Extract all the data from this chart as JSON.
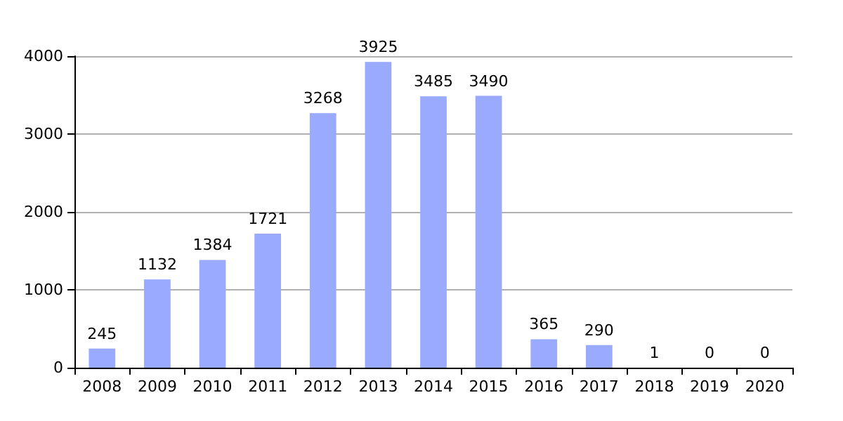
{
  "chart_data": {
    "type": "bar",
    "categories": [
      "2008",
      "2009",
      "2010",
      "2011",
      "2012",
      "2013",
      "2014",
      "2015",
      "2016",
      "2017",
      "2018",
      "2019",
      "2020"
    ],
    "values": [
      245,
      1132,
      1384,
      1721,
      3268,
      3925,
      3485,
      3490,
      365,
      290,
      1,
      0,
      0
    ],
    "color": "#99aaff",
    "ylim": [
      0,
      4000
    ],
    "yticks": [
      0,
      1000,
      2000,
      3000,
      4000
    ],
    "grid": "y",
    "data_labels": true
  }
}
